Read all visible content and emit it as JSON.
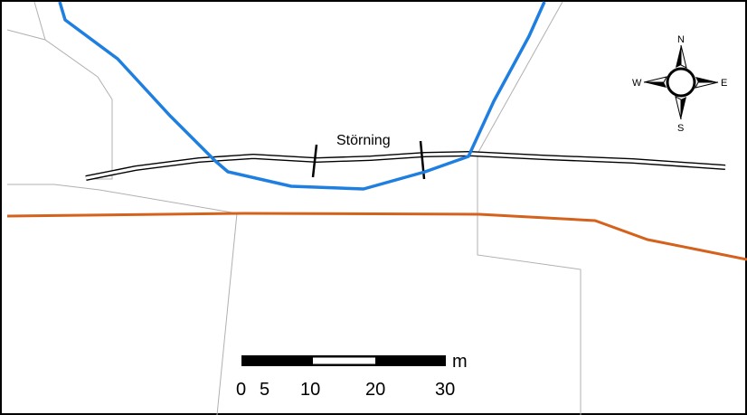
{
  "map": {
    "feature_label": "Störning",
    "colors": {
      "stream": "#1f7fe0",
      "orange_line": "#d4621c",
      "parcel_boundary": "#b0b0b0",
      "road_outline": "#000000",
      "background": "#ffffff"
    }
  },
  "compass": {
    "north": "N",
    "south": "S",
    "east": "E",
    "west": "W"
  },
  "scale_bar": {
    "unit": "m",
    "ticks": [
      "0",
      "5",
      "10",
      "20",
      "30"
    ]
  }
}
